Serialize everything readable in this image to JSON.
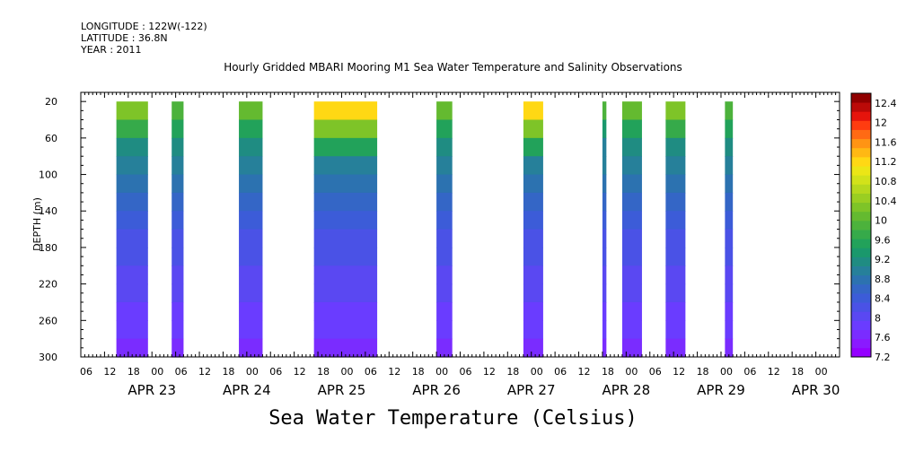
{
  "header": {
    "longitude": "LONGITUDE : 122W(-122)",
    "latitude": "LATITUDE : 36.8N",
    "year": "YEAR : 2011"
  },
  "chart_data": {
    "type": "heatmap",
    "title": "Hourly Gridded MBARI Mooring M1 Sea Water Temperature and Salinity Observations",
    "xlabel": "Sea Water Temperature (Celsius)",
    "ylabel": "DEPTH (m)",
    "ylim": [
      300,
      10
    ],
    "y_ticks": [
      20,
      60,
      100,
      140,
      180,
      220,
      260,
      300
    ],
    "x_start": "2011-04-22 06:00",
    "x_end": "2011-04-30 06:00",
    "x_hour_ticks": [
      "06",
      "12",
      "18",
      "00",
      "06",
      "12",
      "18",
      "00",
      "06",
      "12",
      "18",
      "00",
      "06",
      "12",
      "18",
      "00",
      "06",
      "12",
      "18",
      "00",
      "06",
      "12",
      "18",
      "00",
      "06",
      "12",
      "18",
      "00",
      "06",
      "12",
      "18",
      "00"
    ],
    "x_day_labels": [
      "APR 23",
      "APR 24",
      "APR 25",
      "APR 26",
      "APR 27",
      "APR 28",
      "APR 29",
      "APR 30"
    ],
    "colorbar": {
      "levels": [
        7.2,
        7.4,
        7.6,
        7.8,
        8.0,
        8.2,
        8.4,
        8.6,
        8.8,
        9.0,
        9.2,
        9.4,
        9.6,
        9.8,
        10.0,
        10.2,
        10.4,
        10.6,
        10.8,
        11.0,
        11.2,
        11.4,
        11.6,
        11.8,
        12.0,
        12.2,
        12.4,
        12.6
      ],
      "labels": [
        "12.4",
        "12",
        "11.6",
        "11.2",
        "10.8",
        "10.4",
        "10",
        "9.6",
        "9.2",
        "8.8",
        "8.4",
        "8",
        "7.6",
        "7.2"
      ],
      "colors": [
        "#9400ff",
        "#8a1aff",
        "#7a2cff",
        "#6a3cff",
        "#5a48f2",
        "#4a52e6",
        "#3c5cd8",
        "#3466c6",
        "#2c72b0",
        "#26809a",
        "#1f8c82",
        "#1a986c",
        "#22a25a",
        "#36aa4a",
        "#4cb23c",
        "#64ba30",
        "#7ec428",
        "#9ace22",
        "#b6d81e",
        "#d2e21a",
        "#ece616",
        "#ffd814",
        "#ffb814",
        "#ff9414",
        "#ff6a14",
        "#ff3c10",
        "#e6140c",
        "#bb0a08",
        "#900000"
      ]
    },
    "depth_profile": [
      {
        "depth": 20,
        "temp": 10.1
      },
      {
        "depth": 40,
        "temp": 9.6
      },
      {
        "depth": 60,
        "temp": 9.2
      },
      {
        "depth": 80,
        "temp": 9.0
      },
      {
        "depth": 100,
        "temp": 8.85
      },
      {
        "depth": 120,
        "temp": 8.65
      },
      {
        "depth": 140,
        "temp": 8.5
      },
      {
        "depth": 160,
        "temp": 8.35
      },
      {
        "depth": 180,
        "temp": 8.2
      },
      {
        "depth": 200,
        "temp": 8.1
      },
      {
        "depth": 220,
        "temp": 8.0
      },
      {
        "depth": 240,
        "temp": 7.9
      },
      {
        "depth": 260,
        "temp": 7.8
      },
      {
        "depth": 280,
        "temp": 7.6
      },
      {
        "depth": 300,
        "temp": 7.4
      }
    ],
    "observation_blocks": [
      {
        "start": "2011-04-22 15:00",
        "end": "2011-04-22 23:00",
        "surface_temp": 10.4
      },
      {
        "start": "2011-04-23 05:00",
        "end": "2011-04-23 08:00",
        "surface_temp": 10.1
      },
      {
        "start": "2011-04-23 22:00",
        "end": "2011-04-24 04:00",
        "surface_temp": 10.3
      },
      {
        "start": "2011-04-24 17:00",
        "end": "2011-04-25 09:00",
        "surface_temp": 11.4
      },
      {
        "start": "2011-04-26 00:00",
        "end": "2011-04-26 04:00",
        "surface_temp": 10.3
      },
      {
        "start": "2011-04-26 22:00",
        "end": "2011-04-27 03:00",
        "surface_temp": 11.5
      },
      {
        "start": "2011-04-27 18:00",
        "end": "2011-04-27 19:00",
        "surface_temp": 10.0
      },
      {
        "start": "2011-04-27 23:00",
        "end": "2011-04-28 04:00",
        "surface_temp": 10.2
      },
      {
        "start": "2011-04-28 10:00",
        "end": "2011-04-28 15:00",
        "surface_temp": 10.5
      },
      {
        "start": "2011-04-29 01:00",
        "end": "2011-04-29 03:00",
        "surface_temp": 10.1
      }
    ]
  }
}
